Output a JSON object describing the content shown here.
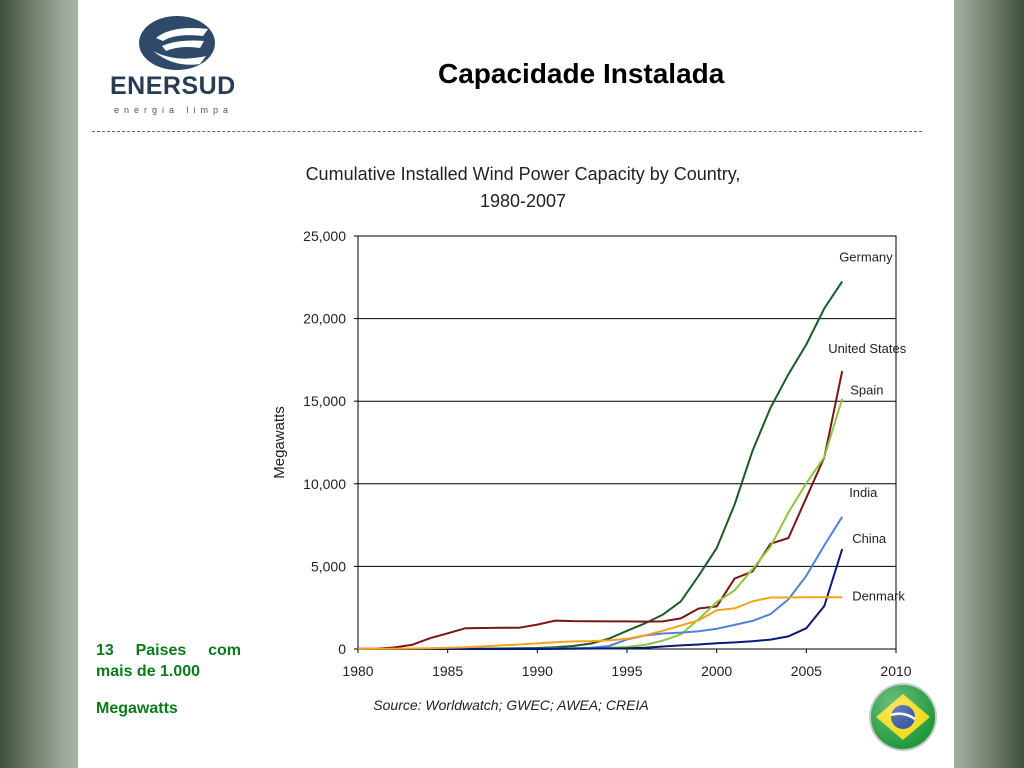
{
  "header": {
    "brand": "ENERSUD",
    "brand_tagline": "energia limpa",
    "slide_title": "Capacidade Instalada",
    "logo_icon": "enersud-logo-icon"
  },
  "note": {
    "line1": "13 Paises com mais de 1.000",
    "line2": "Megawatts"
  },
  "flag_icon": "brazil-flag-icon",
  "colors": {
    "note_green": "#0a7a1a",
    "brand_navy": "#2a3c52"
  },
  "chart_data": {
    "type": "line",
    "title": "Cumulative Installed Wind Power Capacity by Country,",
    "subtitle": "1980-2007",
    "xlabel": "",
    "ylabel": "Megawatts",
    "source": "Source: Worldwatch; GWEC; AWEA; CREIA",
    "xlim": [
      1980,
      2010
    ],
    "ylim": [
      0,
      25000
    ],
    "x_ticks": [
      1980,
      1985,
      1990,
      1995,
      2000,
      2005,
      2010
    ],
    "y_ticks": [
      0,
      5000,
      10000,
      15000,
      20000,
      25000
    ],
    "x_tick_labels": [
      "1980",
      "1985",
      "1990",
      "1995",
      "2000",
      "2005",
      "2010"
    ],
    "y_tick_labels": [
      "0",
      "5,000",
      "10,000",
      "15,000",
      "20,000",
      "25,000"
    ],
    "grid": "horizontal",
    "series": [
      {
        "name": "Germany",
        "color": "#1e5a2a",
        "x": [
          1980,
          1985,
          1990,
          1991,
          1992,
          1993,
          1994,
          1995,
          1996,
          1997,
          1998,
          1999,
          2000,
          2001,
          2002,
          2003,
          2004,
          2005,
          2006,
          2007
        ],
        "y": [
          0,
          0,
          60,
          110,
          180,
          330,
          630,
          1100,
          1550,
          2080,
          2880,
          4440,
          6110,
          8750,
          11990,
          14600,
          16630,
          18430,
          20620,
          22250
        ]
      },
      {
        "name": "United States",
        "color": "#7a1616",
        "x": [
          1980,
          1981,
          1982,
          1983,
          1984,
          1985,
          1986,
          1987,
          1988,
          1989,
          1990,
          1991,
          1992,
          1993,
          1994,
          1995,
          1996,
          1997,
          1998,
          1999,
          2000,
          2001,
          2002,
          2003,
          2004,
          2005,
          2006,
          2007
        ],
        "y": [
          10,
          20,
          90,
          250,
          650,
          950,
          1260,
          1270,
          1290,
          1290,
          1480,
          1720,
          1690,
          1680,
          1670,
          1670,
          1660,
          1670,
          1850,
          2450,
          2580,
          4260,
          4690,
          6370,
          6720,
          9150,
          11600,
          16820
        ]
      },
      {
        "name": "Spain",
        "color": "#8dc63f",
        "x": [
          1980,
          1990,
          1994,
          1995,
          1996,
          1997,
          1998,
          1999,
          2000,
          2001,
          2002,
          2003,
          2004,
          2005,
          2006,
          2007
        ],
        "y": [
          0,
          0,
          80,
          120,
          250,
          510,
          880,
          1810,
          2840,
          3550,
          4830,
          6200,
          8260,
          10030,
          11620,
          15150
        ]
      },
      {
        "name": "India",
        "color": "#4f81d8",
        "x": [
          1980,
          1990,
          1992,
          1993,
          1994,
          1995,
          1996,
          1997,
          1998,
          1999,
          2000,
          2001,
          2002,
          2003,
          2004,
          2005,
          2006,
          2007
        ],
        "y": [
          0,
          0,
          40,
          80,
          180,
          580,
          820,
          940,
          990,
          1080,
          1220,
          1460,
          1700,
          2110,
          3000,
          4430,
          6270,
          8000
        ]
      },
      {
        "name": "China",
        "color": "#0a1a78",
        "x": [
          1980,
          1990,
          1995,
          1996,
          1997,
          1998,
          1999,
          2000,
          2001,
          2002,
          2003,
          2004,
          2005,
          2006,
          2007
        ],
        "y": [
          0,
          0,
          40,
          80,
          150,
          220,
          270,
          350,
          400,
          470,
          570,
          760,
          1260,
          2600,
          6050
        ]
      },
      {
        "name": "Denmark",
        "color": "#f7a21b",
        "x": [
          1980,
          1982,
          1984,
          1985,
          1986,
          1987,
          1988,
          1989,
          1990,
          1991,
          1992,
          1993,
          1994,
          1995,
          1996,
          1997,
          1998,
          1999,
          2000,
          2001,
          2002,
          2003,
          2004,
          2005,
          2006,
          2007
        ],
        "y": [
          0,
          20,
          50,
          70,
          100,
          160,
          220,
          270,
          340,
          410,
          460,
          480,
          520,
          620,
          830,
          1110,
          1420,
          1740,
          2340,
          2460,
          2890,
          3120,
          3120,
          3130,
          3140,
          3130
        ]
      }
    ]
  }
}
